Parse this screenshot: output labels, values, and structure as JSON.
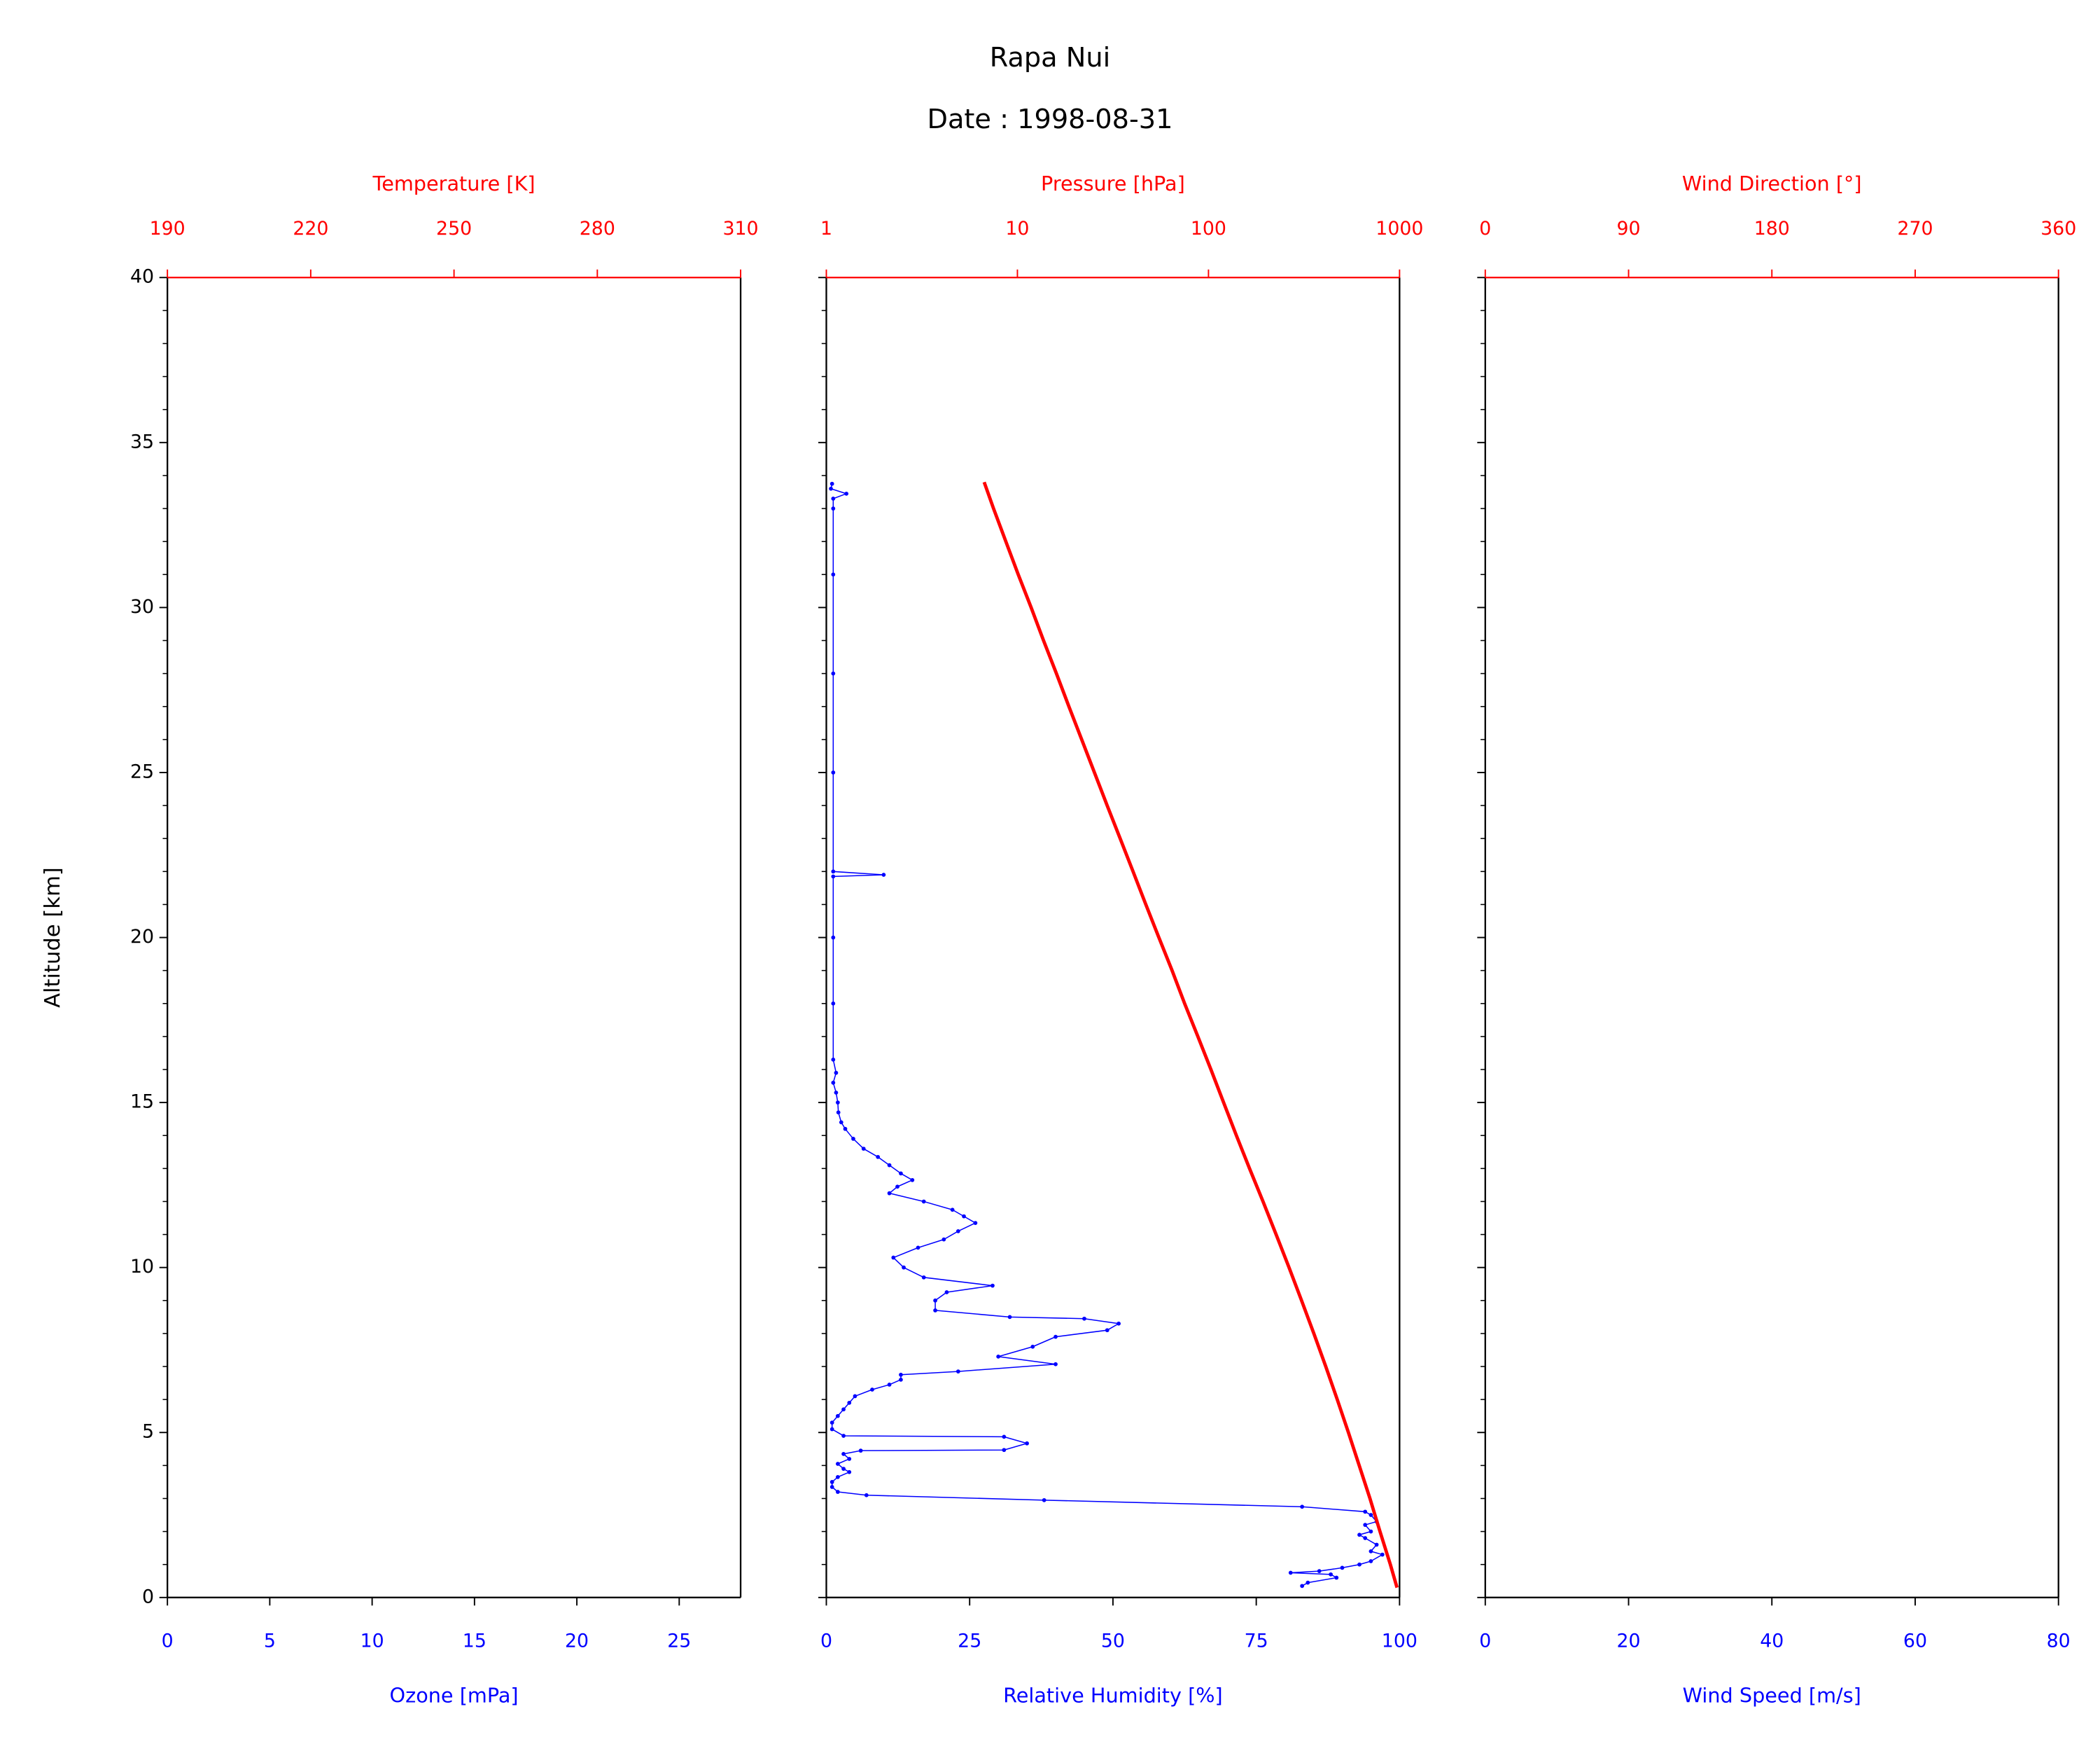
{
  "title": "Rapa Nui",
  "subtitle": "Date : 1998-08-31",
  "chart_data": [
    {
      "type": "line",
      "y_label": "Altitude [km]",
      "show_ytick_labels": true,
      "ylim": [
        0,
        40
      ],
      "yticks": [
        0,
        5,
        10,
        15,
        20,
        25,
        30,
        35,
        40
      ],
      "yminorticks": [
        1,
        2,
        3,
        4,
        6,
        7,
        8,
        9,
        11,
        12,
        13,
        14,
        16,
        17,
        18,
        19,
        21,
        22,
        23,
        24,
        26,
        27,
        28,
        29,
        31,
        32,
        33,
        34,
        36,
        37,
        38,
        39
      ],
      "x_label": "Ozone [mPa]",
      "x_color": "#0000ff",
      "xlim": [
        0,
        28
      ],
      "xticks": [
        0,
        5,
        10,
        15,
        20,
        25
      ],
      "x2_label": "Temperature [K]",
      "x2_color": "#ff0000",
      "x2lim": [
        190,
        310
      ],
      "x2ticks": [
        190,
        220,
        250,
        280,
        310
      ],
      "series": []
    },
    {
      "type": "line",
      "show_ytick_labels": false,
      "ylim": [
        0,
        40
      ],
      "yticks": [
        0,
        5,
        10,
        15,
        20,
        25,
        30,
        35,
        40
      ],
      "yminorticks": [
        1,
        2,
        3,
        4,
        6,
        7,
        8,
        9,
        11,
        12,
        13,
        14,
        16,
        17,
        18,
        19,
        21,
        22,
        23,
        24,
        26,
        27,
        28,
        29,
        31,
        32,
        33,
        34,
        36,
        37,
        38,
        39
      ],
      "x_label": "Relative Humidity [%]",
      "x_color": "#0000ff",
      "xlim": [
        0,
        100
      ],
      "xticks": [
        0,
        25,
        50,
        75,
        100
      ],
      "x2_label": "Pressure [hPa]",
      "x2_color": "#ff0000",
      "x2lim": [
        1,
        1000
      ],
      "x2ticks": [
        1,
        10,
        100,
        1000
      ],
      "x2scale": "log",
      "series": [
        {
          "color": "#0000ff",
          "axis": "x",
          "markers": true,
          "line_width": 0.8,
          "values": [
            83,
            84,
            89,
            88,
            81,
            86,
            90,
            93,
            95,
            97,
            95,
            96,
            94,
            93,
            95,
            94,
            96,
            95,
            94,
            83,
            38,
            7,
            2,
            1,
            1,
            2,
            4,
            3,
            2,
            4,
            3,
            6,
            31,
            35,
            31,
            3,
            1,
            1,
            2,
            3,
            4,
            5,
            8,
            11,
            13,
            13,
            23,
            40,
            30,
            36,
            40,
            49,
            51,
            45,
            32,
            19,
            19,
            21,
            29,
            17,
            13.5,
            11.7,
            16,
            20.5,
            23,
            26,
            24,
            22,
            17,
            11,
            12.4,
            15,
            13,
            11,
            9,
            6.5,
            4.7,
            3.3,
            2.6,
            2.1,
            2,
            1.7,
            1.2,
            1.7,
            1.2,
            1.2,
            1.2,
            1.2,
            10,
            1.2,
            1.2,
            1.2,
            1.2,
            1.2,
            1.2,
            3.5,
            0.8,
            1
          ],
          "altitude": [
            0.35,
            0.45,
            0.6,
            0.7,
            0.75,
            0.8,
            0.9,
            1.0,
            1.1,
            1.3,
            1.4,
            1.6,
            1.8,
            1.9,
            2.0,
            2.2,
            2.3,
            2.5,
            2.6,
            2.75,
            2.95,
            3.1,
            3.2,
            3.35,
            3.5,
            3.65,
            3.8,
            3.9,
            4.05,
            4.2,
            4.35,
            4.45,
            4.47,
            4.67,
            4.87,
            4.9,
            5.1,
            5.3,
            5.5,
            5.7,
            5.9,
            6.1,
            6.3,
            6.45,
            6.6,
            6.75,
            6.85,
            7.07,
            7.3,
            7.6,
            7.9,
            8.1,
            8.3,
            8.45,
            8.5,
            8.7,
            9.0,
            9.25,
            9.45,
            9.7,
            10.0,
            10.3,
            10.6,
            10.85,
            11.1,
            11.35,
            11.55,
            11.75,
            12.0,
            12.25,
            12.45,
            12.65,
            12.85,
            13.1,
            13.35,
            13.6,
            13.9,
            14.2,
            14.4,
            14.7,
            15.0,
            15.3,
            15.6,
            15.9,
            16.3,
            18.0,
            20.0,
            21.85,
            21.9,
            22.0,
            25.0,
            28.0,
            31.0,
            33.0,
            33.3,
            33.45,
            33.6,
            33.75
          ]
        },
        {
          "color": "#ff0000",
          "axis": "x2",
          "markers": false,
          "line_width": 2.5,
          "values": [
            970,
            895,
            790,
            700,
            615,
            540,
            472,
            411,
            356,
            307,
            264,
            226,
            193,
            164,
            140,
            120,
            103,
            88,
            75,
            64.5,
            55,
            47,
            40.3,
            34.5,
            29.5,
            25.3,
            21.7,
            18.6,
            16,
            13.7,
            11.8,
            10.1,
            8.7,
            7.5,
            6.7
          ],
          "altitude": [
            0.3,
            1,
            2,
            3,
            4,
            5,
            6,
            7,
            8,
            9,
            10,
            11,
            12,
            13,
            14,
            15,
            16,
            17,
            18,
            19,
            20,
            21,
            22,
            23,
            24,
            25,
            26,
            27,
            28,
            29,
            30,
            31,
            32,
            33,
            33.8
          ]
        }
      ]
    },
    {
      "type": "line",
      "show_ytick_labels": false,
      "ylim": [
        0,
        40
      ],
      "yticks": [
        0,
        5,
        10,
        15,
        20,
        25,
        30,
        35,
        40
      ],
      "yminorticks": [
        1,
        2,
        3,
        4,
        6,
        7,
        8,
        9,
        11,
        12,
        13,
        14,
        16,
        17,
        18,
        19,
        21,
        22,
        23,
        24,
        26,
        27,
        28,
        29,
        31,
        32,
        33,
        34,
        36,
        37,
        38,
        39
      ],
      "x_label": "Wind Speed [m/s]",
      "x_color": "#0000ff",
      "xlim": [
        0,
        80
      ],
      "xticks": [
        0,
        20,
        40,
        60,
        80
      ],
      "x2_label": "Wind Direction [°]",
      "x2_color": "#ff0000",
      "x2lim": [
        0,
        360
      ],
      "x2ticks": [
        0,
        90,
        180,
        270,
        360
      ],
      "series": []
    }
  ]
}
